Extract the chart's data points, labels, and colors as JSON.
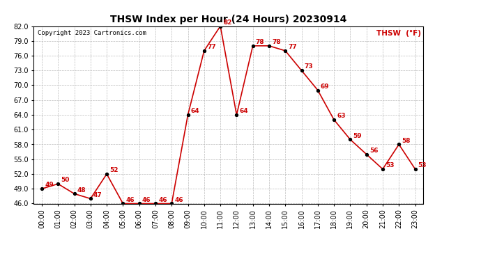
{
  "title": "THSW Index per Hour (24 Hours) 20230914",
  "copyright": "Copyright 2023 Cartronics.com",
  "legend_label": "THSW  (°F)",
  "hours": [
    "00:00",
    "01:00",
    "02:00",
    "03:00",
    "04:00",
    "05:00",
    "06:00",
    "07:00",
    "08:00",
    "09:00",
    "10:00",
    "11:00",
    "12:00",
    "13:00",
    "14:00",
    "15:00",
    "16:00",
    "17:00",
    "18:00",
    "19:00",
    "20:00",
    "21:00",
    "22:00",
    "23:00"
  ],
  "values": [
    49,
    50,
    48,
    47,
    52,
    46,
    46,
    46,
    46,
    64,
    77,
    82,
    64,
    78,
    78,
    77,
    73,
    69,
    63,
    59,
    56,
    53,
    58,
    53
  ],
  "line_color": "#cc0000",
  "marker_color": "#000000",
  "label_color": "#cc0000",
  "title_color": "#000000",
  "copyright_color": "#000000",
  "legend_color": "#cc0000",
  "background_color": "#ffffff",
  "grid_color": "#bbbbbb",
  "ylim": [
    46.0,
    82.0
  ],
  "yticks": [
    46.0,
    49.0,
    52.0,
    55.0,
    58.0,
    61.0,
    64.0,
    67.0,
    70.0,
    73.0,
    76.0,
    79.0,
    82.0
  ],
  "title_fontsize": 10,
  "tick_fontsize": 7,
  "label_fontsize": 6.5,
  "copyright_fontsize": 6.5,
  "legend_fontsize": 7.5
}
